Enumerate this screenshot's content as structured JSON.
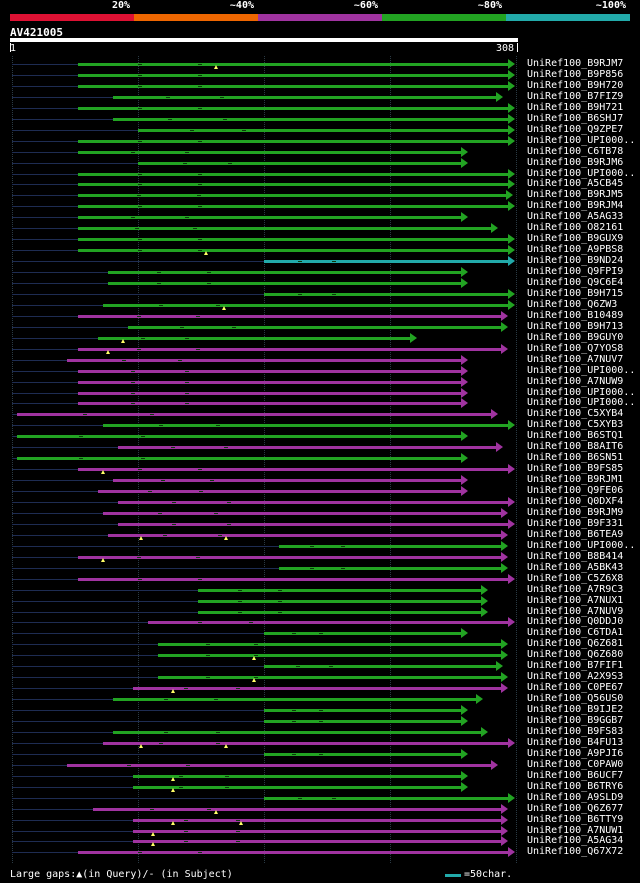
{
  "legend": {
    "labels": [
      "20%",
      "~40%",
      "~60%",
      "~80%",
      "~100%"
    ],
    "colors": [
      "#dd1133",
      "#ee6600",
      "#a033a0",
      "#22a322",
      "#22aaaa"
    ]
  },
  "query": {
    "id": "AV421005",
    "start": "1",
    "end": "308"
  },
  "colors": {
    "green": "#22a322",
    "purple": "#a033a0",
    "cyan": "#22aaaa",
    "track": "#1e2c52"
  },
  "hits": [
    {
      "label": "UniRef100_B9RJM7",
      "color": "green",
      "qs": 0.13,
      "qe": 1.0,
      "marks": [
        0.405
      ]
    },
    {
      "label": "UniRef100_B9P856",
      "color": "green",
      "qs": 0.13,
      "qe": 1.0,
      "marks": []
    },
    {
      "label": "UniRef100_B9H720",
      "color": "green",
      "qs": 0.13,
      "qe": 1.0,
      "marks": []
    },
    {
      "label": "UniRef100_B7FIZ9",
      "color": "green",
      "qs": 0.2,
      "qe": 0.96,
      "marks": []
    },
    {
      "label": "UniRef100_B9H721",
      "color": "green",
      "qs": 0.13,
      "qe": 1.0,
      "marks": []
    },
    {
      "label": "UniRef100_B6SHJ7",
      "color": "green",
      "qs": 0.2,
      "qe": 1.01,
      "marks": []
    },
    {
      "label": "UniRef100_Q9ZPE7",
      "color": "green",
      "qs": 0.25,
      "qe": 1.01,
      "marks": []
    },
    {
      "label": "UniRef100_UPI000..",
      "color": "green",
      "qs": 0.13,
      "qe": 1.0,
      "marks": []
    },
    {
      "label": "UniRef100_C6TB78",
      "color": "green",
      "qs": 0.13,
      "qe": 0.89,
      "marks": []
    },
    {
      "label": "UniRef100_B9RJM6",
      "color": "green",
      "qs": 0.25,
      "qe": 0.89,
      "marks": []
    },
    {
      "label": "UniRef100_UPI000..",
      "color": "green",
      "qs": 0.13,
      "qe": 1.0,
      "marks": []
    },
    {
      "label": "UniRef100_A5CB45",
      "color": "green",
      "qs": 0.13,
      "qe": 1.0,
      "marks": []
    },
    {
      "label": "UniRef100_B9RJM5",
      "color": "green",
      "qs": 0.13,
      "qe": 0.98,
      "marks": []
    },
    {
      "label": "UniRef100_B9RJM4",
      "color": "green",
      "qs": 0.13,
      "qe": 1.0,
      "marks": []
    },
    {
      "label": "UniRef100_A5AG33",
      "color": "green",
      "qs": 0.13,
      "qe": 0.89,
      "marks": []
    },
    {
      "label": "UniRef100_O82161",
      "color": "green",
      "qs": 0.13,
      "qe": 0.95,
      "marks": []
    },
    {
      "label": "UniRef100_B9GUX9",
      "color": "green",
      "qs": 0.13,
      "qe": 1.0,
      "marks": []
    },
    {
      "label": "UniRef100_A9PBS8",
      "color": "green",
      "qs": 0.13,
      "qe": 1.0,
      "marks": [
        0.385
      ]
    },
    {
      "label": "UniRef100_B9ND24",
      "color": "cyan",
      "qs": 0.5,
      "qe": 1.0,
      "marks": []
    },
    {
      "label": "UniRef100_Q9FPI9",
      "color": "green",
      "qs": 0.19,
      "qe": 0.89,
      "marks": []
    },
    {
      "label": "UniRef100_Q9C6E4",
      "color": "green",
      "qs": 0.19,
      "qe": 0.89,
      "marks": []
    },
    {
      "label": "UniRef100_B9H715",
      "color": "green",
      "qs": 0.5,
      "qe": 1.0,
      "marks": []
    },
    {
      "label": "UniRef100_Q6ZW3",
      "color": "green",
      "qs": 0.18,
      "qe": 1.0,
      "marks": [
        0.42
      ]
    },
    {
      "label": "UniRef100_B10489",
      "color": "purple",
      "qs": 0.13,
      "qe": 0.97,
      "marks": []
    },
    {
      "label": "UniRef100_B9H713",
      "color": "green",
      "qs": 0.23,
      "qe": 0.97,
      "marks": []
    },
    {
      "label": "UniRef100_B9GUY0",
      "color": "green",
      "qs": 0.17,
      "qe": 0.79,
      "marks": [
        0.22
      ]
    },
    {
      "label": "UniRef100_Q7YOS8",
      "color": "purple",
      "qs": 0.13,
      "qe": 0.97,
      "marks": [
        0.19
      ]
    },
    {
      "label": "UniRef100_A7NUV7",
      "color": "purple",
      "qs": 0.11,
      "qe": 0.89,
      "marks": []
    },
    {
      "label": "UniRef100_UPI000..",
      "color": "purple",
      "qs": 0.13,
      "qe": 0.89,
      "marks": []
    },
    {
      "label": "UniRef100_A7NUW9",
      "color": "purple",
      "qs": 0.13,
      "qe": 0.89,
      "marks": []
    },
    {
      "label": "UniRef100_UPI000..",
      "color": "purple",
      "qs": 0.13,
      "qe": 0.89,
      "marks": []
    },
    {
      "label": "UniRef100_UPI000..",
      "color": "purple",
      "qs": 0.13,
      "qe": 0.89,
      "marks": []
    },
    {
      "label": "UniRef100_C5XYB4",
      "color": "purple",
      "qs": 0.01,
      "qe": 0.95,
      "marks": []
    },
    {
      "label": "UniRef100_C5XYB3",
      "color": "green",
      "qs": 0.18,
      "qe": 0.99,
      "marks": []
    },
    {
      "label": "UniRef100_B6STQ1",
      "color": "green",
      "qs": 0.01,
      "qe": 0.89,
      "marks": []
    },
    {
      "label": "UniRef100_B8AIT6",
      "color": "purple",
      "qs": 0.21,
      "qe": 0.96,
      "marks": []
    },
    {
      "label": "UniRef100_B6SN51",
      "color": "green",
      "qs": 0.01,
      "qe": 0.89,
      "marks": []
    },
    {
      "label": "UniRef100_B9FS85",
      "color": "purple",
      "qs": 0.13,
      "qe": 1.0,
      "marks": [
        0.18
      ]
    },
    {
      "label": "UniRef100_B9RJM1",
      "color": "purple",
      "qs": 0.2,
      "qe": 0.89,
      "marks": []
    },
    {
      "label": "UniRef100_Q9FE06",
      "color": "purple",
      "qs": 0.17,
      "qe": 0.89,
      "marks": []
    },
    {
      "label": "UniRef100_Q0DXF4",
      "color": "purple",
      "qs": 0.21,
      "qe": 1.0,
      "marks": []
    },
    {
      "label": "UniRef100_B9RJM9",
      "color": "purple",
      "qs": 0.18,
      "qe": 0.97,
      "marks": []
    },
    {
      "label": "UniRef100_B9F331",
      "color": "purple",
      "qs": 0.21,
      "qe": 0.99,
      "marks": []
    },
    {
      "label": "UniRef100_B6TEA9",
      "color": "purple",
      "qs": 0.19,
      "qe": 0.97,
      "marks": [
        0.255,
        0.425
      ]
    },
    {
      "label": "UniRef100_UPI000..",
      "color": "green",
      "qs": 0.53,
      "qe": 0.97,
      "marks": []
    },
    {
      "label": "UniRef100_B8B414",
      "color": "purple",
      "qs": 0.13,
      "qe": 0.97,
      "marks": [
        0.18
      ]
    },
    {
      "label": "UniRef100_A5BK43",
      "color": "green",
      "qs": 0.53,
      "qe": 0.97,
      "marks": []
    },
    {
      "label": "UniRef100_C5Z6X8",
      "color": "purple",
      "qs": 0.13,
      "qe": 1.0,
      "marks": []
    },
    {
      "label": "UniRef100_A7R9C3",
      "color": "green",
      "qs": 0.37,
      "qe": 0.93,
      "marks": []
    },
    {
      "label": "UniRef100_A7NUX1",
      "color": "green",
      "qs": 0.37,
      "qe": 0.93,
      "marks": []
    },
    {
      "label": "UniRef100_A7NUV9",
      "color": "green",
      "qs": 0.37,
      "qe": 0.93,
      "marks": []
    },
    {
      "label": "UniRef100_Q0DDJ0",
      "color": "purple",
      "qs": 0.27,
      "qe": 1.0,
      "marks": []
    },
    {
      "label": "UniRef100_C6TDA1",
      "color": "green",
      "qs": 0.5,
      "qe": 0.89,
      "marks": []
    },
    {
      "label": "UniRef100_Q6Z681",
      "color": "green",
      "qs": 0.29,
      "qe": 0.97,
      "marks": []
    },
    {
      "label": "UniRef100_Q6Z680",
      "color": "green",
      "qs": 0.29,
      "qe": 0.97,
      "marks": [
        0.48
      ]
    },
    {
      "label": "UniRef100_B7FIF1",
      "color": "green",
      "qs": 0.5,
      "qe": 0.96,
      "marks": []
    },
    {
      "label": "UniRef100_A2X9S3",
      "color": "green",
      "qs": 0.29,
      "qe": 0.97,
      "marks": [
        0.48
      ]
    },
    {
      "label": "UniRef100_C0PE67",
      "color": "purple",
      "qs": 0.24,
      "qe": 0.97,
      "marks": [
        0.32
      ]
    },
    {
      "label": "UniRef100_Q56US0",
      "color": "green",
      "qs": 0.2,
      "qe": 0.92,
      "marks": []
    },
    {
      "label": "UniRef100_B9IJE2",
      "color": "green",
      "qs": 0.5,
      "qe": 0.89,
      "marks": []
    },
    {
      "label": "UniRef100_B9GGB7",
      "color": "green",
      "qs": 0.5,
      "qe": 0.89,
      "marks": []
    },
    {
      "label": "UniRef100_B9FS83",
      "color": "green",
      "qs": 0.2,
      "qe": 0.93,
      "marks": []
    },
    {
      "label": "UniRef100_B4FU13",
      "color": "purple",
      "qs": 0.18,
      "qe": 1.0,
      "marks": [
        0.255,
        0.425
      ]
    },
    {
      "label": "UniRef100_A9PJI6",
      "color": "green",
      "qs": 0.5,
      "qe": 0.89,
      "marks": []
    },
    {
      "label": "UniRef100_C0PAW0",
      "color": "purple",
      "qs": 0.11,
      "qe": 0.95,
      "marks": []
    },
    {
      "label": "UniRef100_B6UCF7",
      "color": "green",
      "qs": 0.24,
      "qe": 0.89,
      "marks": [
        0.32
      ]
    },
    {
      "label": "UniRef100_B6TRY6",
      "color": "green",
      "qs": 0.24,
      "qe": 0.89,
      "marks": [
        0.32
      ]
    },
    {
      "label": "UniRef100_A9SLD9",
      "color": "green",
      "qs": 0.5,
      "qe": 1.0,
      "marks": []
    },
    {
      "label": "UniRef100_Q6Z677",
      "color": "purple",
      "qs": 0.16,
      "qe": 0.97,
      "marks": [
        0.405
      ]
    },
    {
      "label": "UniRef100_B6TTY9",
      "color": "purple",
      "qs": 0.24,
      "qe": 0.97,
      "marks": [
        0.32,
        0.455
      ]
    },
    {
      "label": "UniRef100_A7NUW1",
      "color": "purple",
      "qs": 0.24,
      "qe": 0.97,
      "marks": [
        0.28
      ]
    },
    {
      "label": "UniRef100_A5AG34",
      "color": "purple",
      "qs": 0.24,
      "qe": 0.97,
      "marks": [
        0.28
      ]
    },
    {
      "label": "UniRef100_Q67X72",
      "color": "purple",
      "qs": 0.13,
      "qe": 0.99,
      "marks": []
    }
  ],
  "footer": {
    "gaps_text": "Large gaps:▲(in Query)/- (in Subject)",
    "scale_text": "=50char."
  }
}
